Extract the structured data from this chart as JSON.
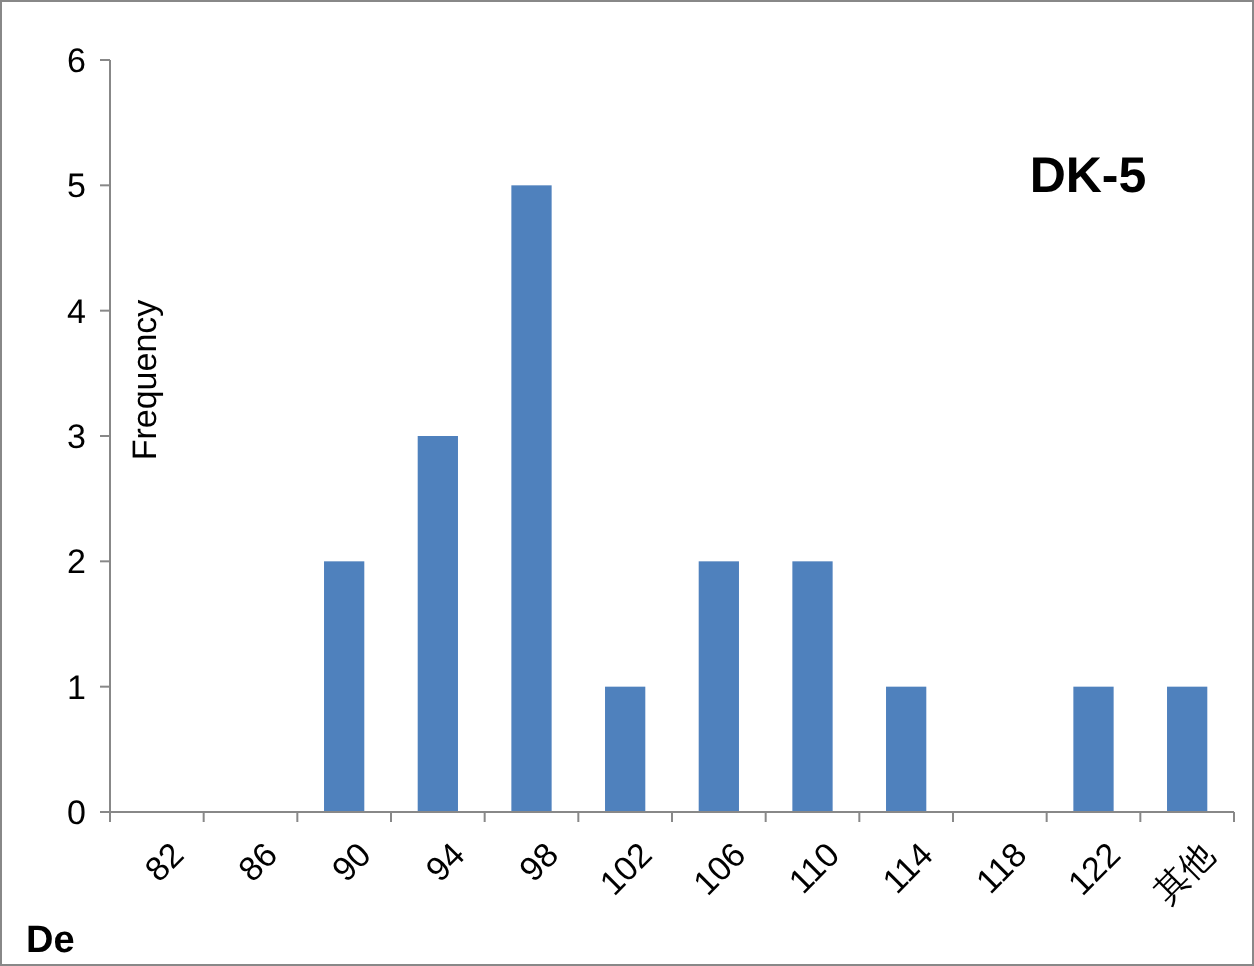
{
  "chart_data": {
    "type": "bar",
    "title": "DK-5",
    "xlabel": "De",
    "ylabel": "Frequency",
    "categories": [
      "82",
      "86",
      "90",
      "94",
      "98",
      "102",
      "106",
      "110",
      "114",
      "118",
      "122",
      "其他"
    ],
    "values": [
      0,
      0,
      2,
      3,
      5,
      1,
      2,
      2,
      1,
      0,
      1,
      1
    ],
    "color": "#4f81bd",
    "ylim": [
      0,
      6
    ],
    "yticks": [
      0,
      1,
      2,
      3,
      4,
      5,
      6
    ],
    "grid": false
  }
}
